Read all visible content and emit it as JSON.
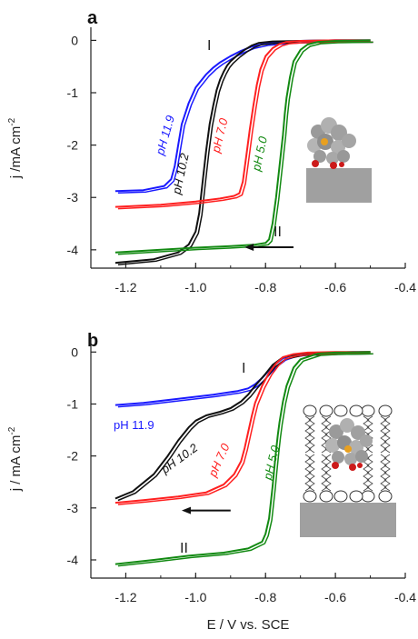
{
  "colors": {
    "blue": "#1a1aff",
    "black": "#111111",
    "red": "#ff2020",
    "green": "#138a13",
    "axis": "#222222",
    "electrode": "#a0a0a0"
  },
  "chart_data": [
    {
      "type": "line",
      "panel": "a",
      "xlabel": "",
      "ylabel": "j /mA cm",
      "ylabel_sup": "-2",
      "xlim": [
        -1.3,
        -0.4
      ],
      "ylim": [
        -4.35,
        0.25
      ],
      "x_ticks": [
        -1.2,
        -1.0,
        -0.8,
        -0.6,
        -0.4
      ],
      "x_tick_labels": [
        "-1.2",
        "-1.0",
        "-0.8",
        "-0.6",
        "-0.4"
      ],
      "y_ticks": [
        0,
        -1,
        -2,
        -3,
        -4
      ],
      "y_tick_labels": [
        "0",
        "-1",
        "-2",
        "-3",
        "-4"
      ],
      "annotations": [
        "I",
        "II"
      ],
      "arrow": {
        "x_from": -0.72,
        "x_to": -0.86,
        "y": -3.95
      },
      "inset": "porphyrin-on-electrode",
      "series": [
        {
          "name": "pH 11.9",
          "color": "blue",
          "x": [
            -1.23,
            -1.15,
            -1.09,
            -1.07,
            -1.06,
            -1.05,
            -1.04,
            -1.02,
            -1.0,
            -0.97,
            -0.95,
            -0.93,
            -0.9,
            -0.87,
            -0.84,
            -0.8,
            -0.75,
            -0.7,
            -0.6,
            -0.5
          ],
          "y": [
            -2.88,
            -2.86,
            -2.78,
            -2.65,
            -2.4,
            -2.0,
            -1.6,
            -1.2,
            -0.9,
            -0.65,
            -0.52,
            -0.42,
            -0.3,
            -0.2,
            -0.12,
            -0.06,
            -0.03,
            -0.01,
            0,
            0
          ]
        },
        {
          "name": "pH 10.2",
          "color": "black",
          "x": [
            -1.23,
            -1.12,
            -1.05,
            -1.02,
            -1.0,
            -0.99,
            -0.98,
            -0.97,
            -0.96,
            -0.95,
            -0.94,
            -0.93,
            -0.92,
            -0.91,
            -0.9,
            -0.88,
            -0.86,
            -0.84,
            -0.82,
            -0.78,
            -0.7,
            -0.6,
            -0.5
          ],
          "y": [
            -4.25,
            -4.18,
            -4.05,
            -3.9,
            -3.65,
            -3.3,
            -2.7,
            -2.1,
            -1.6,
            -1.25,
            -0.95,
            -0.75,
            -0.6,
            -0.48,
            -0.4,
            -0.28,
            -0.18,
            -0.1,
            -0.05,
            -0.02,
            -0.01,
            0,
            0
          ]
        },
        {
          "name": "pH 7.0",
          "color": "red",
          "x": [
            -1.23,
            -1.1,
            -1.0,
            -0.93,
            -0.89,
            -0.875,
            -0.865,
            -0.855,
            -0.845,
            -0.835,
            -0.825,
            -0.815,
            -0.8,
            -0.78,
            -0.76,
            -0.74,
            -0.7,
            -0.6,
            -0.5
          ],
          "y": [
            -3.18,
            -3.14,
            -3.08,
            -3.02,
            -2.97,
            -2.92,
            -2.7,
            -2.2,
            -1.7,
            -1.25,
            -0.85,
            -0.55,
            -0.3,
            -0.15,
            -0.07,
            -0.03,
            -0.01,
            0,
            0
          ]
        },
        {
          "name": "pH 5.0",
          "color": "green",
          "x": [
            -1.23,
            -1.1,
            -1.0,
            -0.9,
            -0.83,
            -0.8,
            -0.79,
            -0.78,
            -0.77,
            -0.76,
            -0.75,
            -0.745,
            -0.74,
            -0.73,
            -0.72,
            -0.7,
            -0.68,
            -0.65,
            -0.6,
            -0.5
          ],
          "y": [
            -4.05,
            -4.0,
            -3.96,
            -3.93,
            -3.9,
            -3.87,
            -3.8,
            -3.5,
            -3.0,
            -2.4,
            -1.8,
            -1.4,
            -1.1,
            -0.7,
            -0.4,
            -0.18,
            -0.08,
            -0.03,
            -0.01,
            0
          ]
        }
      ]
    },
    {
      "type": "line",
      "panel": "b",
      "xlabel": "E / V vs. SCE",
      "ylabel": "j / mA cm",
      "ylabel_sup": "-2",
      "xlim": [
        -1.3,
        -0.4
      ],
      "ylim": [
        -4.35,
        0.25
      ],
      "x_ticks": [
        -1.2,
        -1.0,
        -0.8,
        -0.6,
        -0.4
      ],
      "x_tick_labels": [
        "-1.2",
        "-1.0",
        "-0.8",
        "-0.6",
        "-0.4"
      ],
      "y_ticks": [
        0,
        -1,
        -2,
        -3,
        -4
      ],
      "y_tick_labels": [
        "0",
        "-1",
        "-2",
        "-3",
        "-4"
      ],
      "annotations": [
        "I",
        "II"
      ],
      "arrow": {
        "x_from": -0.9,
        "x_to": -1.04,
        "y": -3.05
      },
      "inset": "porphyrin-in-lipid-bilayer",
      "series": [
        {
          "name": "pH 11.9",
          "color": "blue",
          "x": [
            -1.23,
            -1.15,
            -1.05,
            -0.95,
            -0.88,
            -0.85,
            -0.83,
            -0.81,
            -0.79,
            -0.77,
            -0.75,
            -0.72,
            -0.68,
            -0.62,
            -0.55,
            -0.5
          ],
          "y": [
            -1.02,
            -0.98,
            -0.9,
            -0.82,
            -0.75,
            -0.7,
            -0.62,
            -0.5,
            -0.35,
            -0.22,
            -0.12,
            -0.05,
            -0.02,
            -0.01,
            0,
            0
          ]
        },
        {
          "name": "pH 10.2",
          "color": "black",
          "x": [
            -1.23,
            -1.18,
            -1.12,
            -1.08,
            -1.05,
            -1.02,
            -1.0,
            -0.97,
            -0.93,
            -0.9,
            -0.87,
            -0.85,
            -0.83,
            -0.8,
            -0.78,
            -0.75,
            -0.7,
            -0.6,
            -0.5
          ],
          "y": [
            -2.82,
            -2.68,
            -2.35,
            -2.0,
            -1.7,
            -1.45,
            -1.32,
            -1.22,
            -1.15,
            -1.08,
            -0.95,
            -0.82,
            -0.65,
            -0.42,
            -0.25,
            -0.1,
            -0.03,
            -0.01,
            0
          ]
        },
        {
          "name": "pH 7.0",
          "color": "red",
          "x": [
            -1.23,
            -1.15,
            -1.05,
            -0.97,
            -0.92,
            -0.89,
            -0.87,
            -0.86,
            -0.85,
            -0.84,
            -0.83,
            -0.81,
            -0.79,
            -0.77,
            -0.75,
            -0.72,
            -0.68,
            -0.6,
            -0.5
          ],
          "y": [
            -2.9,
            -2.85,
            -2.78,
            -2.7,
            -2.55,
            -2.35,
            -2.1,
            -1.85,
            -1.55,
            -1.25,
            -0.98,
            -0.65,
            -0.4,
            -0.22,
            -0.1,
            -0.04,
            -0.01,
            0,
            0
          ]
        },
        {
          "name": "pH 5.0",
          "color": "green",
          "x": [
            -1.23,
            -1.12,
            -1.02,
            -0.92,
            -0.85,
            -0.81,
            -0.8,
            -0.79,
            -0.785,
            -0.78,
            -0.775,
            -0.77,
            -0.765,
            -0.76,
            -0.75,
            -0.74,
            -0.72,
            -0.7,
            -0.65,
            -0.6,
            -0.5
          ],
          "y": [
            -4.08,
            -4.0,
            -3.92,
            -3.86,
            -3.78,
            -3.65,
            -3.5,
            -3.2,
            -2.9,
            -2.6,
            -2.25,
            -1.9,
            -1.6,
            -1.35,
            -0.95,
            -0.65,
            -0.3,
            -0.14,
            -0.03,
            -0.01,
            0
          ]
        }
      ]
    }
  ],
  "series_labels": {
    "a": [
      "pH 11.9",
      "pH 10.2",
      "pH 7.0",
      "pH 5.0"
    ],
    "b": [
      "pH 11.9",
      "pH 10.2",
      "pH 7.0",
      "pH 5.0"
    ]
  }
}
